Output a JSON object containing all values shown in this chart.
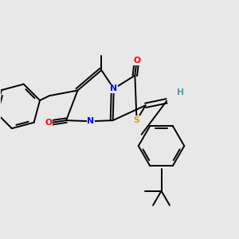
{
  "bg_color": "#e8e8e8",
  "atom_colors": {
    "N": "#0000ff",
    "O": "#ff0000",
    "S": "#ccaa00",
    "H": "#50a0a0"
  },
  "bond_color": "#000000",
  "bond_width": 1.4,
  "figsize": [
    3.0,
    3.0
  ],
  "dpi": 100
}
